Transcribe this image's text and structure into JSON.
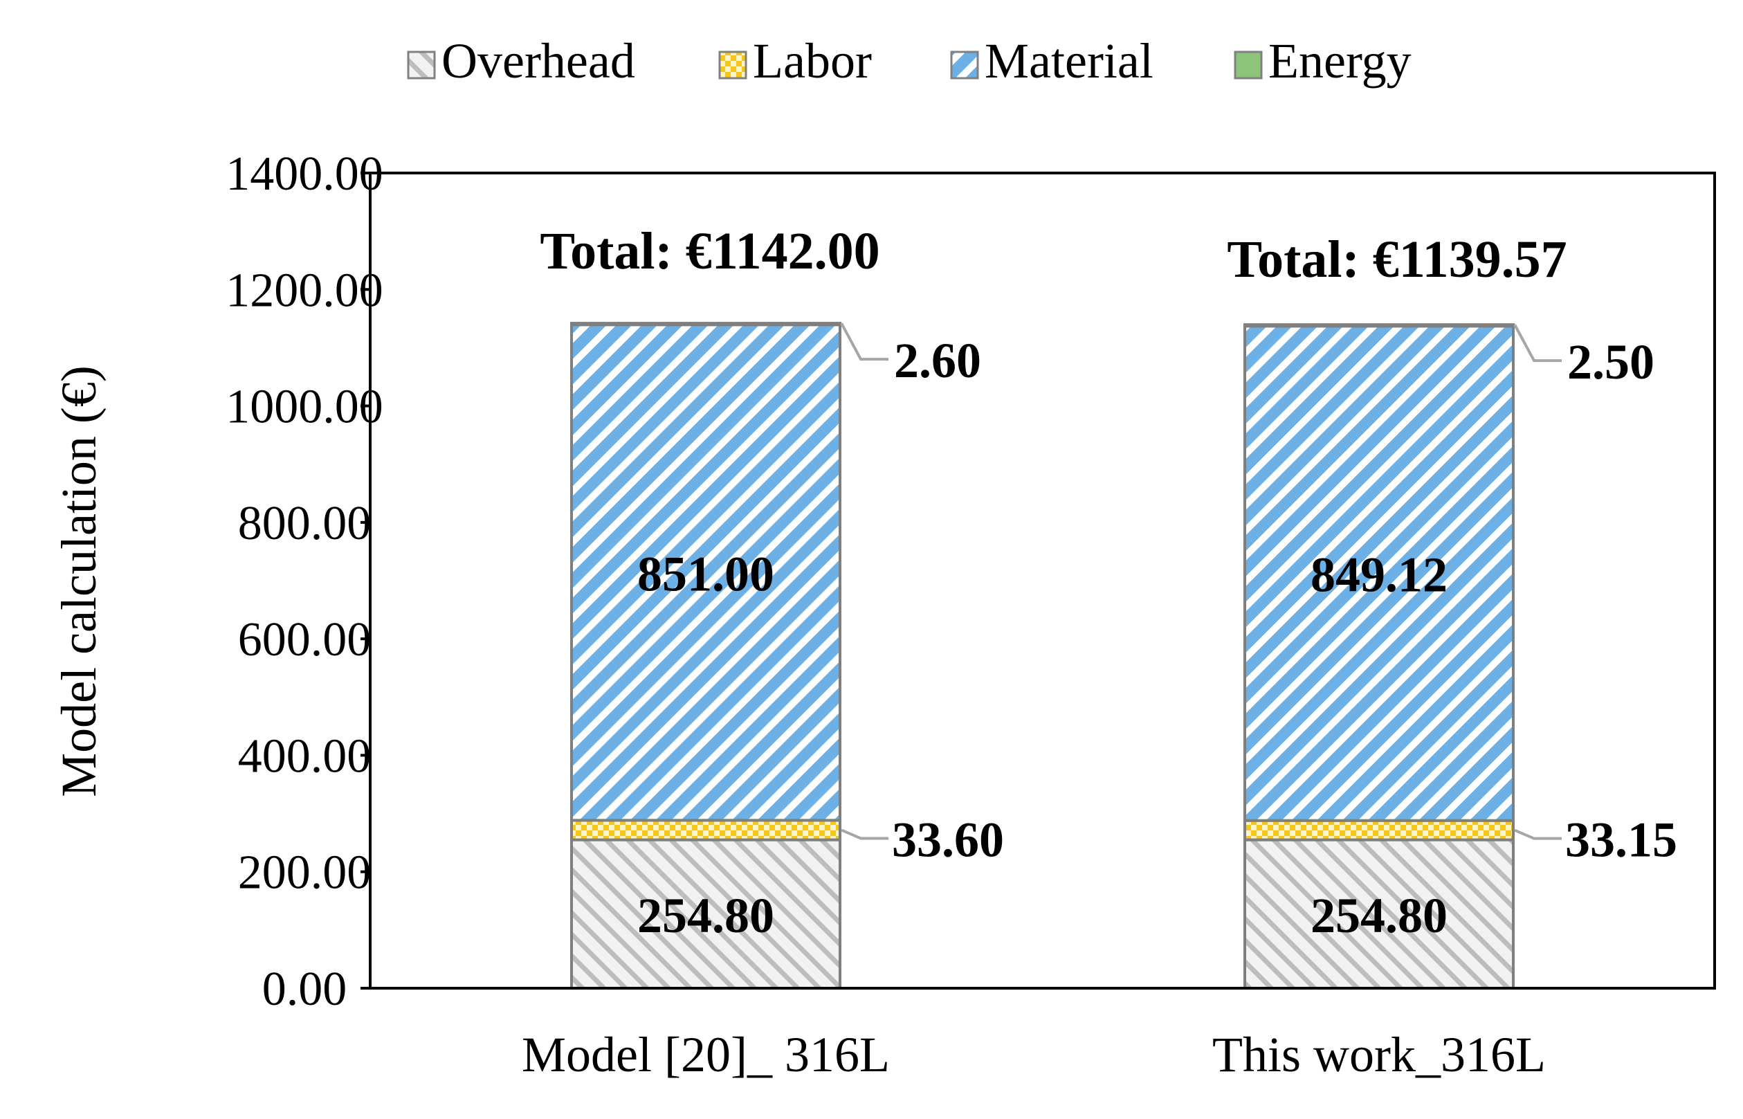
{
  "chart_data": {
    "type": "bar",
    "stacked": true,
    "categories": [
      "Model [20]_ 316L",
      "This work_316L"
    ],
    "series": [
      {
        "name": "Overhead",
        "values": [
          254.8,
          254.8
        ],
        "color": "#c8c8c8",
        "pattern": "diagonal-hatch-grey"
      },
      {
        "name": "Labor",
        "values": [
          33.6,
          33.15
        ],
        "color": "#f5c518",
        "pattern": "checker-yellow"
      },
      {
        "name": "Material",
        "values": [
          851.0,
          849.12
        ],
        "color": "#6cb0e6",
        "pattern": "diagonal-hatch-blue"
      },
      {
        "name": "Energy",
        "values": [
          2.6,
          2.5
        ],
        "color": "#8cc47a",
        "pattern": "solid-green"
      }
    ],
    "data_labels": {
      "Overhead": [
        "254.80",
        "254.80"
      ],
      "Labor": [
        "33.60",
        "33.15"
      ],
      "Material": [
        "851.00",
        "849.12"
      ],
      "Energy": [
        "2.60",
        "2.50"
      ]
    },
    "totals": [
      "Total: €1142.00",
      "Total: €1139.57"
    ],
    "ylabel": "Model calculation (€)",
    "xlabel": "",
    "ylim": [
      0,
      1400
    ],
    "yticks": [
      "0.00",
      "200.00",
      "400.00",
      "600.00",
      "800.00",
      "1000.00",
      "1200.00",
      "1400.00"
    ],
    "legend": {
      "position": "top-center",
      "entries": [
        "Overhead",
        "Labor",
        "Material",
        "Energy"
      ]
    },
    "grid": false
  }
}
